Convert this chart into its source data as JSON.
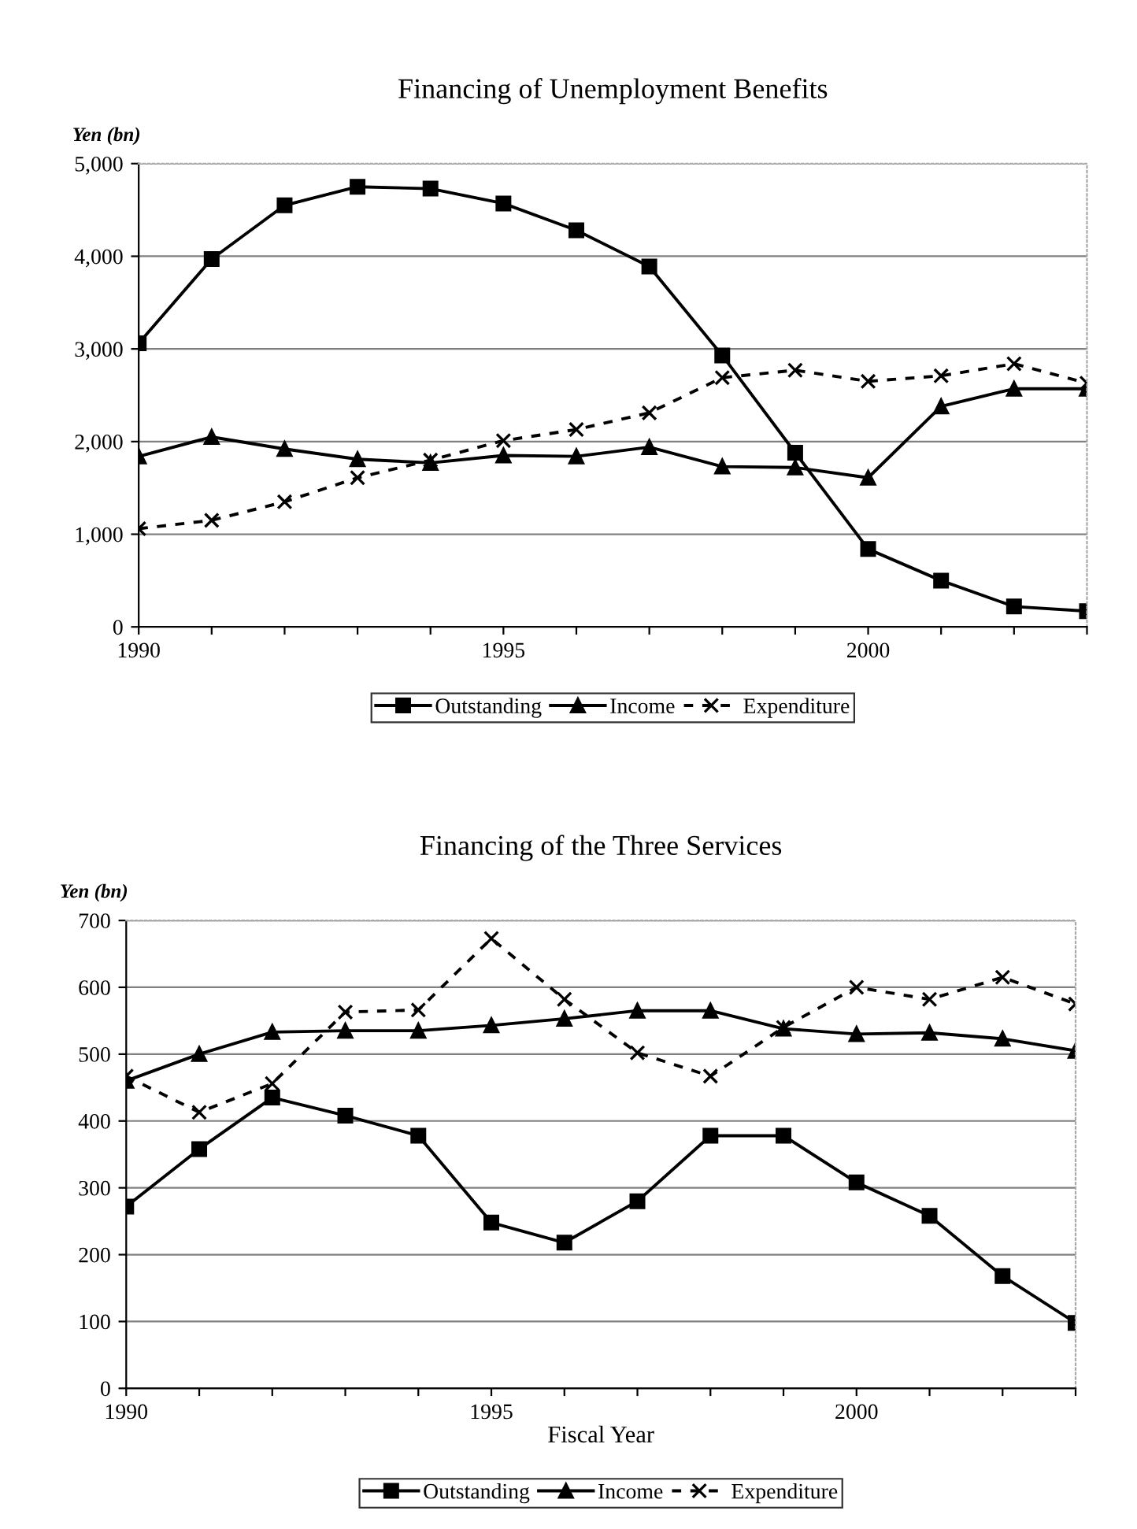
{
  "chart_data": [
    {
      "type": "line",
      "title": "Financing of Unemployment Benefits",
      "ylabel": "Yen (bn)",
      "x": [
        1990,
        1991,
        1992,
        1993,
        1994,
        1995,
        1996,
        1997,
        1998,
        1999,
        2000,
        2001,
        2002,
        2003
      ],
      "series": [
        {
          "name": "Outstanding",
          "color": "#000000",
          "marker": "square",
          "line_style": "solid",
          "values": [
            3060,
            3970,
            4550,
            4750,
            4730,
            4570,
            4280,
            3890,
            2930,
            1880,
            840,
            500,
            220,
            170
          ]
        },
        {
          "name": "Income",
          "color": "#000000",
          "marker": "triangle",
          "line_style": "solid",
          "values": [
            1840,
            2050,
            1920,
            1810,
            1770,
            1850,
            1840,
            1940,
            1730,
            1720,
            1610,
            2380,
            2570,
            2570
          ]
        },
        {
          "name": "Expenditure",
          "color": "#000000",
          "marker": "cross",
          "line_style": "dashed",
          "values": [
            1060,
            1150,
            1350,
            1610,
            1800,
            2010,
            2130,
            2310,
            2690,
            2770,
            2650,
            2710,
            2840,
            2630
          ]
        }
      ],
      "xlim": [
        1990,
        2003
      ],
      "xticks": [
        1990,
        {
          "value": 1991,
          "label": null
        },
        {
          "value": 1992,
          "label": null
        },
        {
          "value": 1993,
          "label": null
        },
        {
          "value": 1994,
          "label": null
        },
        1995,
        {
          "value": 1996,
          "label": null
        },
        {
          "value": 1997,
          "label": null
        },
        {
          "value": 1998,
          "label": null
        },
        {
          "value": 1999,
          "label": null
        },
        2000,
        {
          "value": 2001,
          "label": null
        },
        {
          "value": 2002,
          "label": null
        },
        {
          "value": 2003,
          "label": null
        }
      ],
      "ylim": [
        0,
        5000
      ],
      "yticks": [
        0,
        {
          "value": 1000,
          "label": "1,000"
        },
        {
          "value": 2000,
          "label": "2,000"
        },
        {
          "value": 3000,
          "label": "3,000"
        },
        {
          "value": 4000,
          "label": "4,000"
        },
        {
          "value": 5000,
          "label": "5,000"
        }
      ],
      "grid": "y",
      "legend": "bottom"
    },
    {
      "type": "line",
      "title": "Financing of the Three Services",
      "ylabel": "Yen (bn)",
      "xlabel": "Fiscal Year",
      "x": [
        1990,
        1991,
        1992,
        1993,
        1994,
        1995,
        1996,
        1997,
        1998,
        1999,
        2000,
        2001,
        2002,
        2003
      ],
      "series": [
        {
          "name": "Outstanding",
          "color": "#000000",
          "marker": "square",
          "line_style": "solid",
          "values": [
            272,
            358,
            435,
            408,
            378,
            248,
            218,
            280,
            378,
            378,
            308,
            258,
            168,
            98
          ]
        },
        {
          "name": "Income",
          "color": "#000000",
          "marker": "triangle",
          "line_style": "solid",
          "values": [
            460,
            500,
            533,
            535,
            535,
            543,
            553,
            565,
            565,
            538,
            530,
            532,
            523,
            505
          ]
        },
        {
          "name": "Expenditure",
          "color": "#000000",
          "marker": "cross",
          "line_style": "dashed",
          "values": [
            467,
            413,
            456,
            563,
            566,
            673,
            582,
            502,
            467,
            540,
            600,
            582,
            615,
            575
          ]
        }
      ],
      "xlim": [
        1990,
        2003
      ],
      "xticks": [
        1990,
        {
          "value": 1991,
          "label": null
        },
        {
          "value": 1992,
          "label": null
        },
        {
          "value": 1993,
          "label": null
        },
        {
          "value": 1994,
          "label": null
        },
        1995,
        {
          "value": 1996,
          "label": null
        },
        {
          "value": 1997,
          "label": null
        },
        {
          "value": 1998,
          "label": null
        },
        {
          "value": 1999,
          "label": null
        },
        2000,
        {
          "value": 2001,
          "label": null
        },
        {
          "value": 2002,
          "label": null
        },
        {
          "value": 2003,
          "label": null
        }
      ],
      "ylim": [
        0,
        700
      ],
      "yticks": [
        0,
        100,
        200,
        300,
        400,
        500,
        600,
        700
      ],
      "grid": "y",
      "legend": "bottom"
    }
  ]
}
